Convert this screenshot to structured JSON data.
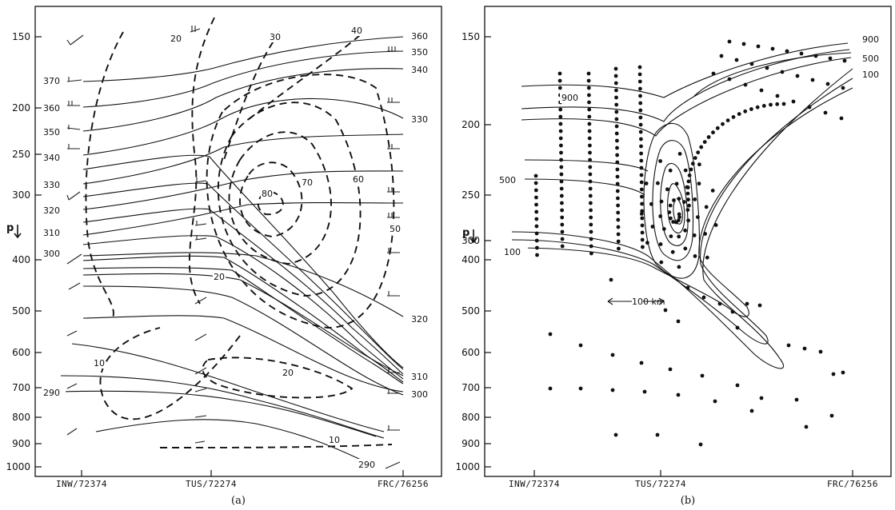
{
  "panels": [
    {
      "caption": "(a)",
      "axis_label": "p",
      "y_ticks": [
        "150",
        "200",
        "250",
        "300",
        "400",
        "500",
        "600",
        "700",
        "800",
        "900",
        "1000"
      ],
      "x_ticks": [
        "INW/72374",
        "TUS/72274",
        "FRC/76256"
      ],
      "theta_labels_left": [
        "370",
        "360",
        "350",
        "340",
        "330",
        "320",
        "310",
        "300",
        "290"
      ],
      "theta_labels_right": [
        "360",
        "350",
        "340",
        "330",
        "320",
        "310",
        "300",
        "290"
      ],
      "wind_labels": [
        "20",
        "30",
        "40",
        "80",
        "70",
        "60",
        "50",
        "20",
        "20",
        "10",
        "10"
      ]
    },
    {
      "caption": "(b)",
      "axis_label": "p",
      "y_ticks": [
        "150",
        "200",
        "250",
        "300",
        "400",
        "500",
        "600",
        "700",
        "800",
        "900",
        "1000"
      ],
      "x_ticks": [
        "INW/72374",
        "TUS/72274",
        "FRC/76256"
      ],
      "contour_labels_left": [
        "900",
        "500",
        "100"
      ],
      "contour_labels_right": [
        "900",
        "500",
        "100"
      ],
      "scale_label": "100 km"
    }
  ]
}
